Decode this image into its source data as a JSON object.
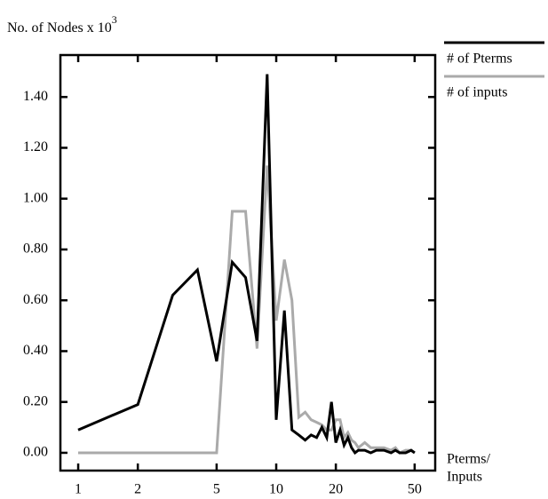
{
  "chart_data": {
    "type": "line",
    "ylabel": "No. of Nodes x 10",
    "ylabel_exponent": "3",
    "xlabel": [
      "Pterms/",
      "Inputs"
    ],
    "x": [
      1,
      2,
      3,
      4,
      5,
      6,
      7,
      8,
      9,
      10,
      11,
      12,
      13,
      14,
      15,
      16,
      17,
      18,
      19,
      20,
      21,
      22,
      23,
      24,
      25,
      26,
      28,
      30,
      32,
      35,
      38,
      40,
      42,
      45,
      48,
      50
    ],
    "series": [
      {
        "name": "# of Pterms",
        "color": "#000000",
        "values": [
          0.09,
          0.19,
          0.62,
          0.72,
          0.36,
          0.75,
          0.69,
          0.44,
          1.49,
          0.13,
          0.56,
          0.09,
          0.07,
          0.05,
          0.07,
          0.06,
          0.1,
          0.06,
          0.2,
          0.04,
          0.09,
          0.03,
          0.06,
          0.02,
          0.0,
          0.01,
          0.01,
          0.0,
          0.01,
          0.01,
          0.0,
          0.01,
          0.0,
          0.0,
          0.01,
          0.0
        ]
      },
      {
        "name": "# of inputs",
        "color": "#aaaaaa",
        "values": [
          0,
          0,
          0,
          0,
          0,
          0.95,
          0.95,
          0.41,
          1.13,
          0.52,
          0.76,
          0.6,
          0.14,
          0.16,
          0.13,
          0.12,
          0.11,
          0.09,
          0.09,
          0.13,
          0.13,
          0.06,
          0.08,
          0.05,
          0.04,
          0.02,
          0.04,
          0.02,
          0.02,
          0.02,
          0.01,
          0.02,
          0.0,
          0.01,
          0.01,
          0.0
        ]
      }
    ],
    "xscale": "log",
    "xlim": [
      0.813,
      63.5
    ],
    "xticks": [
      1,
      2,
      5,
      10,
      20,
      50
    ],
    "ylim": [
      -0.07,
      1.565
    ],
    "yticks": [
      {
        "value": 0,
        "label": "0.00"
      },
      {
        "value": 0.2,
        "label": "0.20"
      },
      {
        "value": 0.4,
        "label": "0.40"
      },
      {
        "value": 0.6,
        "label": "0.60"
      },
      {
        "value": 0.8,
        "label": "0.80"
      },
      {
        "value": 1.0,
        "label": "1.00"
      },
      {
        "value": 1.2,
        "label": "1.20"
      },
      {
        "value": 1.4,
        "label": "1.40"
      }
    ],
    "legend": "outside-top-right"
  }
}
